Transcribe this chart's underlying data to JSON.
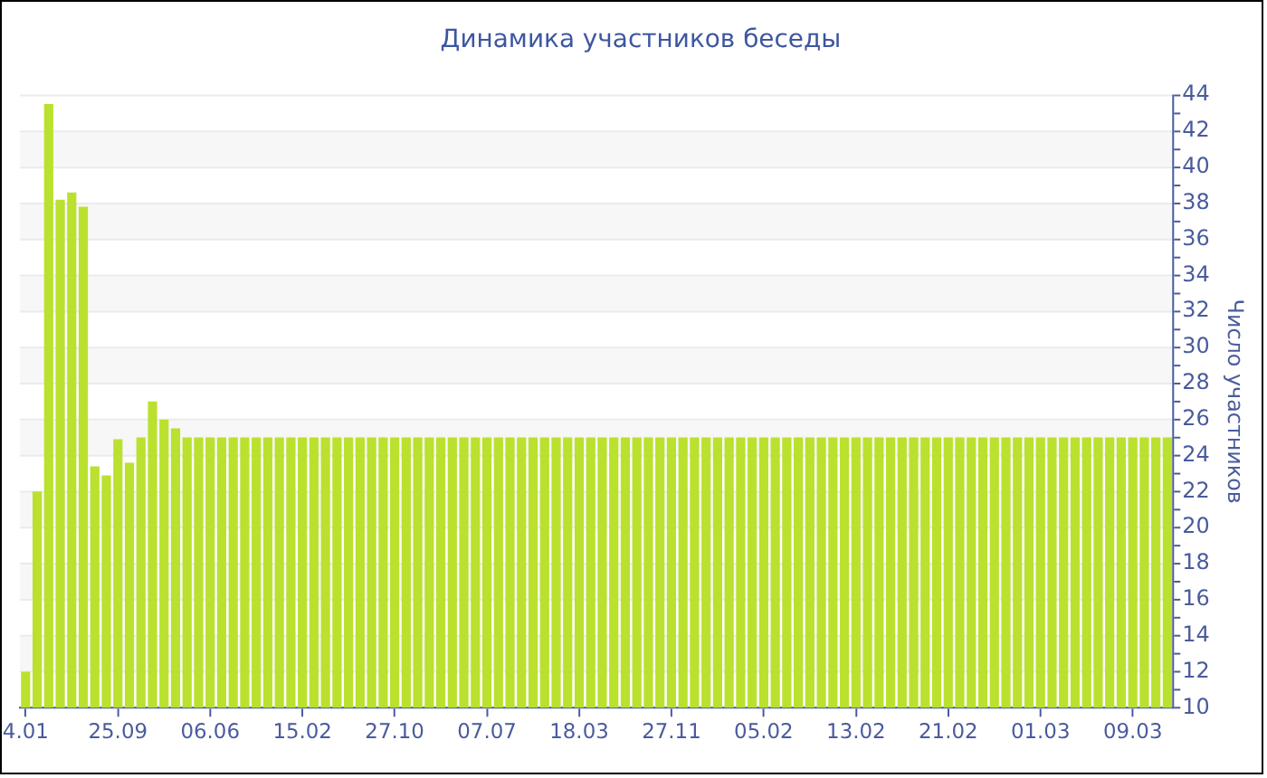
{
  "chart_data": {
    "type": "bar",
    "title": "Динамика участников беседы",
    "ylabel": "Число участников",
    "categories": [
      "4.01",
      null,
      null,
      null,
      null,
      null,
      null,
      null,
      "25.09",
      null,
      null,
      null,
      null,
      null,
      null,
      null,
      "06.06",
      null,
      null,
      null,
      null,
      null,
      null,
      null,
      "15.02",
      null,
      null,
      null,
      null,
      null,
      null,
      null,
      "27.10",
      null,
      null,
      null,
      null,
      null,
      null,
      null,
      "07.07",
      null,
      null,
      null,
      null,
      null,
      null,
      null,
      "18.03",
      null,
      null,
      null,
      null,
      null,
      null,
      null,
      "27.11",
      null,
      null,
      null,
      null,
      null,
      null,
      null,
      "05.02",
      null,
      null,
      null,
      null,
      null,
      null,
      null,
      "13.02",
      null,
      null,
      null,
      null,
      null,
      null,
      null,
      "21.02",
      null,
      null,
      null,
      null,
      null,
      null,
      null,
      "01.03",
      null,
      null,
      null,
      null,
      null,
      null,
      null,
      "09.03",
      null,
      null,
      null
    ],
    "values": [
      12,
      22,
      43.5,
      38.2,
      38.6,
      37.8,
      23.4,
      22.9,
      24.9,
      23.6,
      25,
      27,
      26,
      25.5,
      25,
      25,
      25,
      25,
      25,
      25,
      25,
      25,
      25,
      25,
      25,
      25,
      25,
      25,
      25,
      25,
      25,
      25,
      25,
      25,
      25,
      25,
      25,
      25,
      25,
      25,
      25,
      25,
      25,
      25,
      25,
      25,
      25,
      25,
      25,
      25,
      25,
      25,
      25,
      25,
      25,
      25,
      25,
      25,
      25,
      25,
      25,
      25,
      25,
      25,
      25,
      25,
      25,
      25,
      25,
      25,
      25,
      25,
      25,
      25,
      25,
      25,
      25,
      25,
      25,
      25,
      25,
      25,
      25,
      25,
      25,
      25,
      25,
      25,
      25,
      25,
      25,
      25,
      25,
      25,
      25,
      25,
      25,
      25,
      25,
      25
    ],
    "color": "#bae12e",
    "ylim": [
      10,
      44
    ],
    "yticks": [
      10,
      {
        "value": 11,
        "label": null
      },
      12,
      {
        "value": 13,
        "label": null
      },
      14,
      {
        "value": 15,
        "label": null
      },
      16,
      {
        "value": 17,
        "label": null
      },
      18,
      {
        "value": 19,
        "label": null
      },
      20,
      {
        "value": 21,
        "label": null
      },
      22,
      {
        "value": 23,
        "label": null
      },
      24,
      {
        "value": 25,
        "label": null
      },
      26,
      {
        "value": 27,
        "label": null
      },
      28,
      {
        "value": 29,
        "label": null
      },
      30,
      {
        "value": 31,
        "label": null
      },
      32,
      {
        "value": 33,
        "label": null
      },
      34,
      {
        "value": 35,
        "label": null
      },
      36,
      {
        "value": 37,
        "label": null
      },
      38,
      {
        "value": 39,
        "label": null
      },
      40,
      {
        "value": 41,
        "label": null
      },
      42,
      {
        "value": 43,
        "label": null
      },
      44
    ],
    "grid": "y"
  }
}
